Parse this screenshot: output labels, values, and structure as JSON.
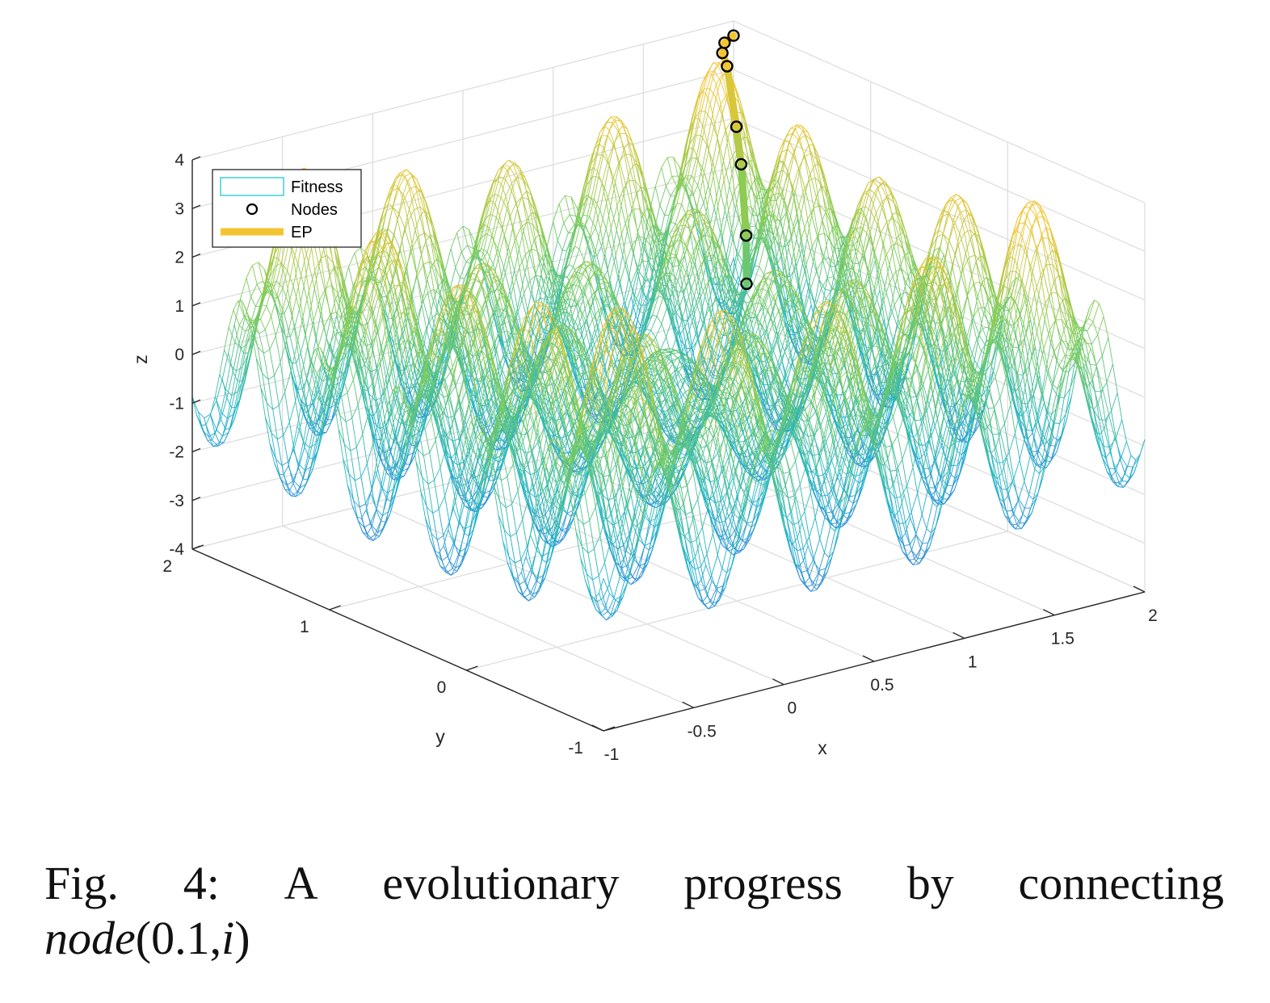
{
  "chart_data": {
    "type": "surface",
    "surface_kind": "mesh",
    "xlabel": "x",
    "ylabel": "y",
    "zlabel": "z",
    "xlim": [
      -1,
      2
    ],
    "ylim": [
      -1,
      2
    ],
    "zlim": [
      -4,
      4
    ],
    "x_ticks": [
      "-1",
      "-0.5",
      "0",
      "0.5",
      "1",
      "1.5",
      "2"
    ],
    "y_ticks": [
      "-1",
      "0",
      "1",
      "2"
    ],
    "z_ticks": [
      "-4",
      "-3",
      "-2",
      "-1",
      "0",
      "1",
      "2",
      "3",
      "4"
    ],
    "grid": true,
    "colormap": [
      "#3e5ee8",
      "#1fb5c9",
      "#7fcc58",
      "#f5c531"
    ],
    "legend": {
      "position": "top-left",
      "entries": [
        {
          "label": "Fitness",
          "style": "mesh",
          "color": "#3fd0d6"
        },
        {
          "label": "Nodes",
          "style": "circle",
          "color": "#000000"
        },
        {
          "label": "EP",
          "style": "thick-line",
          "color": "#f4c430"
        }
      ]
    },
    "ep_path": [
      {
        "x": 1.35,
        "y": 1.05,
        "z": 0.4
      },
      {
        "x": 1.5,
        "y": 1.25,
        "z": 1.0
      },
      {
        "x": 1.7,
        "y": 1.55,
        "z": 1.9
      },
      {
        "x": 1.75,
        "y": 1.65,
        "z": 2.5
      },
      {
        "x": 1.85,
        "y": 1.85,
        "z": 3.4
      },
      {
        "x": 1.9,
        "y": 1.95,
        "z": 3.5
      },
      {
        "x": 1.95,
        "y": 2.0,
        "z": 3.6
      },
      {
        "x": 2.0,
        "y": 2.0,
        "z": 3.7
      }
    ],
    "surface_model": "rastrigin-like: z = peaks of cos ripples, low center, high edges"
  },
  "caption": {
    "line1_words": [
      "Fig.",
      "4:",
      "A",
      "evolutionary",
      "progress",
      "by",
      "connecting"
    ],
    "line2_func": "node",
    "line2_args": "(0.1,",
    "line2_arg_i": "i",
    "line2_close": ")"
  }
}
